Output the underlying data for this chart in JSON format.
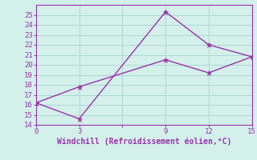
{
  "line1_x": [
    0,
    3,
    9,
    12,
    15
  ],
  "line1_y": [
    16.2,
    14.6,
    25.3,
    22.0,
    20.8
  ],
  "line2_x": [
    0,
    3,
    9,
    12,
    15
  ],
  "line2_y": [
    16.2,
    17.8,
    20.5,
    19.2,
    20.8
  ],
  "line_color": "#9933aa",
  "bg_color": "#d4f0eb",
  "grid_color": "#b0d8d4",
  "xlabel": "Windchill (Refroidissement éolien,°C)",
  "xlabel_color": "#9933aa",
  "tick_color": "#9933aa",
  "xlim": [
    0,
    15
  ],
  "ylim": [
    14,
    26
  ],
  "xticks": [
    0,
    3,
    6,
    9,
    12,
    15
  ],
  "xtick_labels": [
    "0",
    "3",
    "",
    "9",
    "12",
    "15"
  ],
  "yticks": [
    14,
    15,
    16,
    17,
    18,
    19,
    20,
    21,
    22,
    23,
    24,
    25
  ],
  "marker": "*",
  "markersize": 5,
  "linewidth": 1.0
}
